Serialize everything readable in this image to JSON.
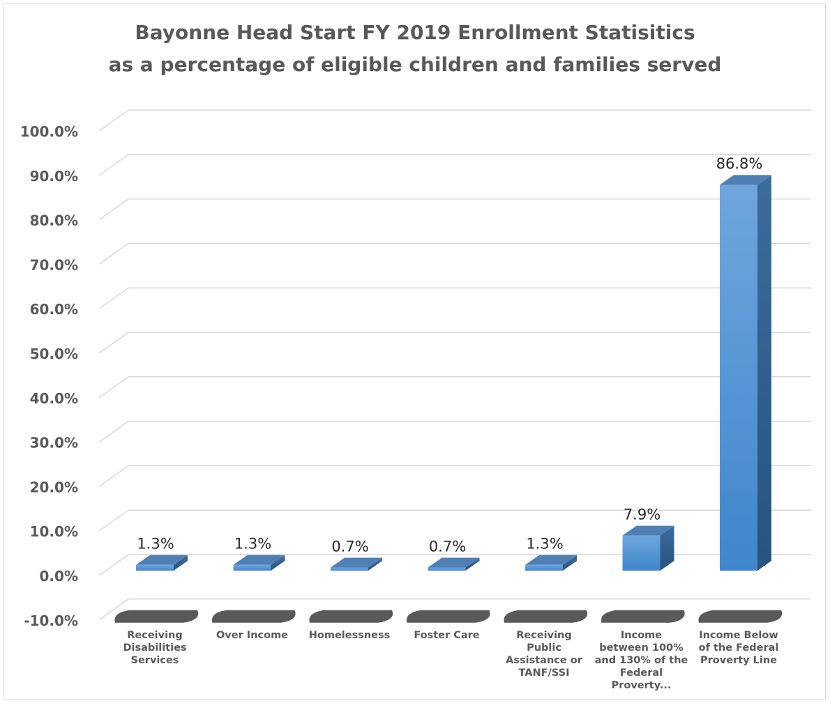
{
  "chart_data": {
    "type": "bar",
    "title": "Bayonne Head Start FY 2019 Enrollment Statisitics",
    "subtitle": "as a percentage of eligible children and families served",
    "categories": [
      [
        "Receiving",
        "Disabilities",
        "Services"
      ],
      [
        "Over Income"
      ],
      [
        "Homelessness"
      ],
      [
        "Foster Care"
      ],
      [
        "Receiving",
        "Public",
        "Assistance or",
        "TANF/SSI"
      ],
      [
        "Income",
        "between 100%",
        "and 130% of the",
        "Federal",
        "Proverty..."
      ],
      [
        "Income Below",
        "of the Federal",
        "Proverty Line"
      ]
    ],
    "values": [
      1.3,
      1.3,
      0.7,
      0.7,
      1.3,
      7.9,
      86.8
    ],
    "data_labels": [
      "1.3%",
      "1.3%",
      "0.7%",
      "0.7%",
      "1.3%",
      "7.9%",
      "86.8%"
    ],
    "y_ticks": [
      "100.0%",
      "90.0%",
      "80.0%",
      "70.0%",
      "60.0%",
      "50.0%",
      "40.0%",
      "30.0%",
      "20.0%",
      "10.0%",
      "0.0%",
      "-10.0%"
    ],
    "ylim": [
      -10,
      100
    ],
    "grid": true,
    "style": "3d-column",
    "colors": {
      "bar_front_top": "#6fa6de",
      "bar_front_bottom": "#3f86cc",
      "bar_side": "#2f5f8f",
      "bar_top": "#4f7fb5",
      "floor_shadow": "#595959",
      "grid": "#d9d9d9",
      "text": "#595959",
      "label": "#262626"
    }
  }
}
